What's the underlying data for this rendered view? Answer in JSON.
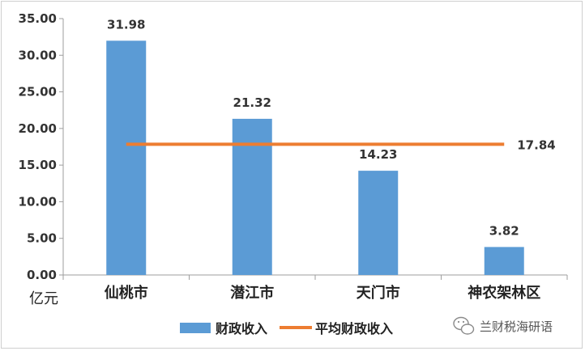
{
  "chart_data": {
    "type": "bar",
    "categories": [
      "仙桃市",
      "潜江市",
      "天门市",
      "神农架林区"
    ],
    "series": [
      {
        "name": "财政收入",
        "kind": "bar",
        "values": [
          31.98,
          21.32,
          14.23,
          3.82
        ],
        "color": "#5b9bd5"
      },
      {
        "name": "平均财政收入",
        "kind": "line",
        "values": [
          17.84,
          17.84,
          17.84,
          17.84
        ],
        "color": "#ed7d31"
      }
    ],
    "data_labels": [
      "31.98",
      "21.32",
      "14.23",
      "3.82"
    ],
    "average_label": "17.84",
    "ylim": [
      0,
      35
    ],
    "yticks": [
      "0.00",
      "5.00",
      "10.00",
      "15.00",
      "20.00",
      "25.00",
      "30.00",
      "35.00"
    ],
    "ylabel": "亿元",
    "legend_position": "bottom",
    "grid": false
  },
  "watermark": {
    "icon": "wechat-icon",
    "text": "兰财税海研语"
  }
}
